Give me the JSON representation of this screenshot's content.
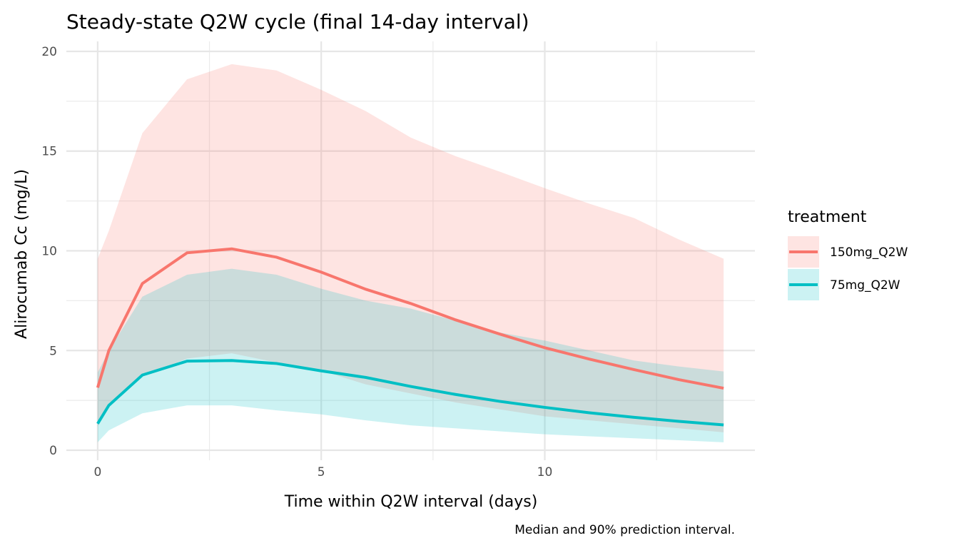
{
  "chart_data": {
    "type": "line",
    "title": "Steady-state Q2W cycle (final 14-day interval)",
    "xlabel": "Time within Q2W interval (days)",
    "ylabel": "Alirocumab Cc (mg/L)",
    "caption": "Median and 90% prediction interval.",
    "xlim": [
      -0.7,
      14.7
    ],
    "ylim": [
      -0.5,
      20.5
    ],
    "xticks": [
      0,
      5,
      10
    ],
    "xtick_labels": [
      "0",
      "5",
      "10"
    ],
    "yticks": [
      0,
      5,
      10,
      15,
      20
    ],
    "ytick_labels": [
      "0",
      "5",
      "10",
      "15",
      "20"
    ],
    "grid": true,
    "legend": {
      "title": "treatment",
      "position": "right"
    },
    "x": [
      0,
      0.25,
      1,
      2,
      3,
      4,
      5,
      6,
      7,
      8,
      9,
      10,
      11,
      12,
      13,
      14
    ],
    "series": [
      {
        "name": "150mg_Q2W",
        "color": "#F8766D",
        "median": [
          3.14,
          5.0,
          8.36,
          9.9,
          10.1,
          9.68,
          8.93,
          8.07,
          7.36,
          6.54,
          5.82,
          5.14,
          4.57,
          4.04,
          3.54,
          3.11
        ],
        "lower": [
          1.2,
          2.3,
          3.7,
          4.6,
          4.86,
          4.4,
          4.0,
          3.3,
          2.85,
          2.4,
          2.05,
          1.7,
          1.5,
          1.3,
          1.1,
          0.9
        ],
        "upper": [
          9.6,
          11.0,
          15.9,
          18.6,
          19.36,
          19.04,
          18.07,
          17.0,
          15.68,
          14.75,
          13.96,
          13.14,
          12.36,
          11.64,
          10.57,
          9.6
        ]
      },
      {
        "name": "75mg_Q2W",
        "color": "#00BFC4",
        "median": [
          1.33,
          2.25,
          3.77,
          4.47,
          4.5,
          4.35,
          3.98,
          3.65,
          3.2,
          2.8,
          2.45,
          2.15,
          1.88,
          1.65,
          1.45,
          1.27
        ],
        "lower": [
          0.4,
          1.0,
          1.85,
          2.25,
          2.25,
          2.0,
          1.8,
          1.5,
          1.25,
          1.1,
          0.95,
          0.8,
          0.7,
          0.6,
          0.5,
          0.4
        ],
        "upper": [
          3.9,
          5.0,
          7.7,
          8.8,
          9.1,
          8.8,
          8.1,
          7.5,
          7.1,
          6.5,
          5.9,
          5.5,
          5.0,
          4.5,
          4.2,
          3.95
        ]
      }
    ]
  }
}
